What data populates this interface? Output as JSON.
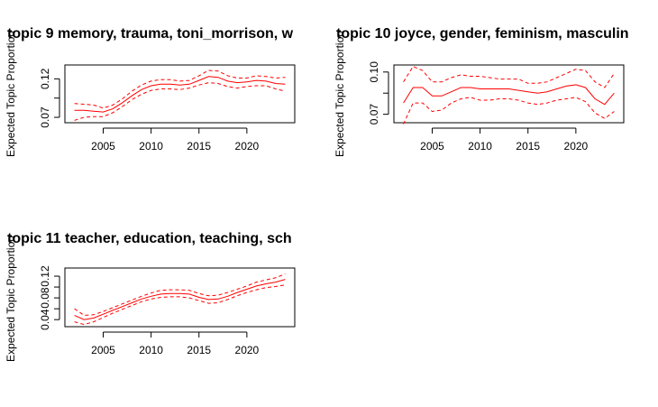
{
  "chart_data": [
    {
      "type": "line",
      "title": "topic 9 memory, trauma, toni_morrison, w",
      "xlabel": "",
      "ylabel": "Expected Topic Proportion",
      "xlim": [
        2001,
        2025
      ],
      "ylim": [
        0.063,
        0.138
      ],
      "xticks": [
        "2005",
        "2010",
        "2015",
        "2020"
      ],
      "yticks": [
        "0.07",
        "0.12"
      ],
      "x": [
        2002,
        2003,
        2004,
        2005,
        2006,
        2007,
        2008,
        2009,
        2010,
        2011,
        2012,
        2013,
        2014,
        2015,
        2016,
        2017,
        2018,
        2019,
        2020,
        2021,
        2022,
        2023,
        2024
      ],
      "series": [
        {
          "role": "estimate",
          "values": [
            0.079,
            0.079,
            0.078,
            0.077,
            0.081,
            0.089,
            0.098,
            0.106,
            0.111,
            0.113,
            0.113,
            0.112,
            0.113,
            0.118,
            0.123,
            0.122,
            0.117,
            0.115,
            0.116,
            0.118,
            0.117,
            0.114,
            0.113
          ]
        },
        {
          "role": "upper",
          "values": [
            0.088,
            0.087,
            0.086,
            0.082,
            0.086,
            0.094,
            0.104,
            0.112,
            0.117,
            0.119,
            0.119,
            0.117,
            0.118,
            0.124,
            0.131,
            0.13,
            0.124,
            0.121,
            0.121,
            0.124,
            0.123,
            0.121,
            0.122
          ]
        },
        {
          "role": "lower",
          "values": [
            0.066,
            0.07,
            0.071,
            0.071,
            0.076,
            0.084,
            0.093,
            0.1,
            0.105,
            0.107,
            0.107,
            0.106,
            0.108,
            0.112,
            0.115,
            0.114,
            0.11,
            0.108,
            0.11,
            0.111,
            0.111,
            0.107,
            0.104
          ]
        }
      ]
    },
    {
      "type": "line",
      "title": "topic 10 joyce, gender, feminism, masculin",
      "xlabel": "",
      "ylabel": "Expected Topic Proportion",
      "xlim": [
        2001,
        2025
      ],
      "ylim": [
        0.064,
        0.105
      ],
      "xticks": [
        "2005",
        "2010",
        "2015",
        "2020"
      ],
      "yticks": [
        "0.07",
        "0.10"
      ],
      "x": [
        2002,
        2003,
        2004,
        2005,
        2006,
        2007,
        2008,
        2009,
        2010,
        2011,
        2012,
        2013,
        2014,
        2015,
        2016,
        2017,
        2018,
        2019,
        2020,
        2021,
        2022,
        2023,
        2024
      ],
      "series": [
        {
          "role": "estimate",
          "values": [
            0.078,
            0.089,
            0.089,
            0.083,
            0.083,
            0.086,
            0.089,
            0.089,
            0.088,
            0.088,
            0.088,
            0.088,
            0.087,
            0.086,
            0.085,
            0.086,
            0.088,
            0.09,
            0.091,
            0.089,
            0.081,
            0.077,
            0.085
          ]
        },
        {
          "role": "upper",
          "values": [
            0.093,
            0.104,
            0.101,
            0.093,
            0.093,
            0.096,
            0.098,
            0.097,
            0.097,
            0.096,
            0.095,
            0.095,
            0.095,
            0.092,
            0.092,
            0.093,
            0.096,
            0.099,
            0.102,
            0.101,
            0.093,
            0.089,
            0.099
          ]
        },
        {
          "role": "lower",
          "values": [
            0.063,
            0.078,
            0.078,
            0.072,
            0.073,
            0.078,
            0.081,
            0.082,
            0.08,
            0.08,
            0.081,
            0.081,
            0.08,
            0.078,
            0.077,
            0.078,
            0.08,
            0.081,
            0.082,
            0.079,
            0.071,
            0.067,
            0.072
          ]
        }
      ]
    },
    {
      "type": "line",
      "title": "topic 11 teacher, education, teaching, sch",
      "xlabel": "",
      "ylabel": "Expected Topic Proportion",
      "xlim": [
        2001,
        2025
      ],
      "ylim": [
        0.027,
        0.135
      ],
      "xticks": [
        "2005",
        "2010",
        "2015",
        "2020"
      ],
      "yticks": [
        "0.04",
        "0.08",
        "0.12"
      ],
      "x": [
        2002,
        2003,
        2004,
        2005,
        2006,
        2007,
        2008,
        2009,
        2010,
        2011,
        2012,
        2013,
        2014,
        2015,
        2016,
        2017,
        2018,
        2019,
        2020,
        2021,
        2022,
        2023,
        2024
      ],
      "series": [
        {
          "role": "estimate",
          "values": [
            0.048,
            0.04,
            0.043,
            0.05,
            0.057,
            0.064,
            0.071,
            0.078,
            0.083,
            0.087,
            0.088,
            0.088,
            0.087,
            0.081,
            0.077,
            0.078,
            0.083,
            0.09,
            0.096,
            0.102,
            0.106,
            0.109,
            0.114
          ]
        },
        {
          "role": "upper",
          "values": [
            0.06,
            0.048,
            0.049,
            0.055,
            0.062,
            0.069,
            0.076,
            0.083,
            0.089,
            0.094,
            0.095,
            0.095,
            0.094,
            0.088,
            0.084,
            0.085,
            0.09,
            0.096,
            0.102,
            0.109,
            0.113,
            0.117,
            0.124
          ]
        },
        {
          "role": "lower",
          "values": [
            0.036,
            0.031,
            0.036,
            0.044,
            0.052,
            0.059,
            0.066,
            0.073,
            0.078,
            0.081,
            0.082,
            0.082,
            0.08,
            0.075,
            0.07,
            0.071,
            0.077,
            0.084,
            0.09,
            0.095,
            0.099,
            0.101,
            0.104
          ]
        }
      ]
    }
  ],
  "colors": {
    "line": "#ff0000",
    "axis": "#000000",
    "text": "#000000"
  }
}
